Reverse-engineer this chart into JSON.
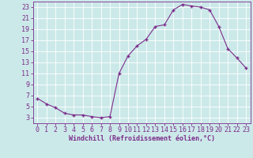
{
  "x": [
    0,
    1,
    2,
    3,
    4,
    5,
    6,
    7,
    8,
    9,
    10,
    11,
    12,
    13,
    14,
    15,
    16,
    17,
    18,
    19,
    20,
    21,
    22,
    23
  ],
  "y": [
    6.5,
    5.5,
    4.8,
    3.8,
    3.5,
    3.5,
    3.2,
    3.0,
    3.2,
    11.0,
    14.2,
    16.0,
    17.2,
    19.5,
    19.8,
    22.5,
    23.5,
    23.2,
    23.0,
    22.5,
    19.5,
    15.5,
    13.8,
    12.0
  ],
  "line_color": "#7b2d8b",
  "marker": "+",
  "marker_size": 3,
  "marker_lw": 1.0,
  "bg_color": "#cce9e9",
  "grid_color": "#b0d8d8",
  "xlabel": "Windchill (Refroidissement éolien,°C)",
  "xlabel_fontsize": 6.0,
  "tick_fontsize": 6.0,
  "ylim": [
    2,
    24
  ],
  "xlim": [
    -0.5,
    23.5
  ],
  "yticks": [
    3,
    5,
    7,
    9,
    11,
    13,
    15,
    17,
    19,
    21,
    23
  ],
  "xticks": [
    0,
    1,
    2,
    3,
    4,
    5,
    6,
    7,
    8,
    9,
    10,
    11,
    12,
    13,
    14,
    15,
    16,
    17,
    18,
    19,
    20,
    21,
    22,
    23
  ]
}
